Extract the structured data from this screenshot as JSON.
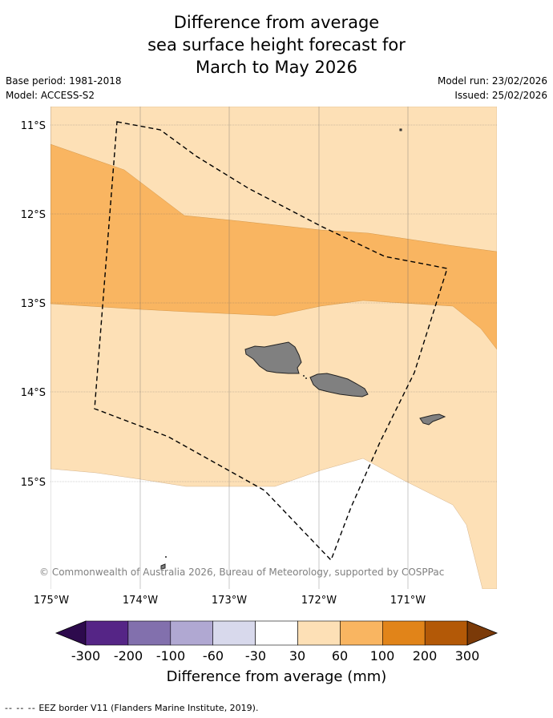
{
  "title": {
    "line1": "Difference from average",
    "line2": "sea surface height forecast for",
    "line3": "March to May 2026"
  },
  "info": {
    "base_period": "Base period: 1981-2018",
    "model": "Model: ACCESS-S2",
    "model_run": "Model run: 23/02/2026",
    "issued": "Issued: 25/02/2026"
  },
  "map": {
    "lat_labels": [
      "11°S",
      "12°S",
      "13°S",
      "14°S",
      "15°S"
    ],
    "lon_labels": [
      "175°W",
      "174°W",
      "173°W",
      "172°W",
      "171°W"
    ],
    "copyright": "© Commonwealth of Australia 2026, Bureau of Meteorology, supported by COSPPac"
  },
  "colorbar": {
    "ticks": [
      "-300",
      "-200",
      "-100",
      "-60",
      "-30",
      "30",
      "60",
      "100",
      "200",
      "300"
    ],
    "colors": [
      "#552586",
      "#8270ad",
      "#b0a8d2",
      "#d8d9ec",
      "#ffffff",
      "#fde0b6",
      "#f9b561",
      "#e18419",
      "#b35907"
    ],
    "under_color": "#2d0a4d",
    "over_color": "#7b3a08",
    "label": "Difference from average (mm)"
  },
  "legend": {
    "symbol": "-- -- --",
    "text": "EEZ border V11 (Flanders Marine Institute, 2019)."
  }
}
